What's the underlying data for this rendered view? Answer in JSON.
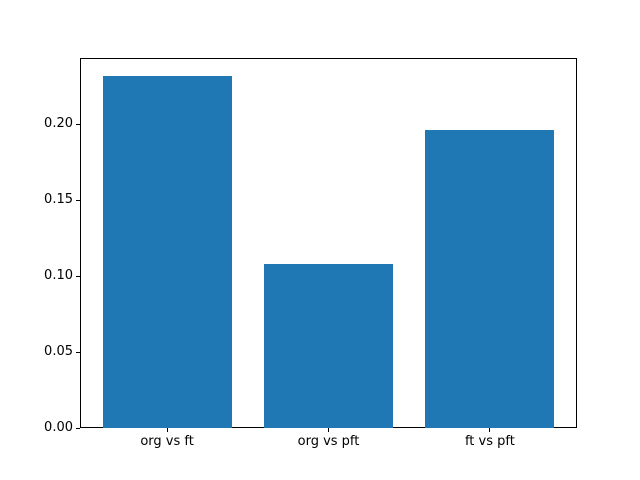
{
  "figure": {
    "background": "#ffffff",
    "plot_background": "#ffffff",
    "spine_color": "#000000",
    "tick_color": "#000000",
    "label_color": "#000000"
  },
  "chart_data": {
    "type": "bar",
    "title": "",
    "xlabel": "",
    "ylabel": "",
    "categories": [
      "org vs ft",
      "org vs pft",
      "ft vs pft"
    ],
    "values": [
      0.232,
      0.108,
      0.196
    ],
    "bar_color": "#1f77b4",
    "bar_width_data_units": 0.8,
    "xlim": [
      -0.54,
      2.54
    ],
    "ylim": [
      0,
      0.2435
    ],
    "yticks": {
      "values": [
        0,
        0.05,
        0.1,
        0.15,
        0.2
      ],
      "labels": [
        "0.00",
        "0.05",
        "0.10",
        "0.15",
        "0.20"
      ]
    },
    "grid": false,
    "legend": "none"
  }
}
